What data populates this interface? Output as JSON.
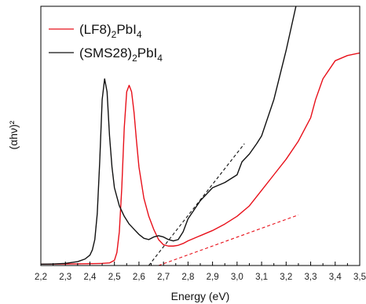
{
  "chart_data": {
    "type": "line",
    "title": "",
    "xlabel": "Energy (eV)",
    "ylabel": "(αhν)²",
    "xlim": [
      2.2,
      3.5
    ],
    "ylim": [
      0,
      1.0
    ],
    "xticks": [
      "2,2",
      "2,3",
      "2,4",
      "2,5",
      "2,6",
      "2,7",
      "2,8",
      "2,9",
      "3,0",
      "3,1",
      "3,2",
      "3,3",
      "3,4",
      "3,5"
    ],
    "xtick_values": [
      2.2,
      2.3,
      2.4,
      2.5,
      2.6,
      2.7,
      2.8,
      2.9,
      3.0,
      3.1,
      3.2,
      3.3,
      3.4,
      3.5
    ],
    "yticks_shown": false,
    "legend_position": "top-left",
    "series": [
      {
        "name": "(LF8)₂PbI₄",
        "legend_main": "(LF8)",
        "legend_sub1": "2",
        "legend_mid": "PbI",
        "legend_sub2": "4",
        "color": "#e8101a",
        "x": [
          2.2,
          2.3,
          2.4,
          2.45,
          2.48,
          2.5,
          2.51,
          2.52,
          2.53,
          2.54,
          2.55,
          2.56,
          2.57,
          2.58,
          2.59,
          2.6,
          2.62,
          2.64,
          2.66,
          2.68,
          2.7,
          2.72,
          2.74,
          2.76,
          2.78,
          2.8,
          2.85,
          2.9,
          2.95,
          3.0,
          3.05,
          3.1,
          3.15,
          3.2,
          3.25,
          3.3,
          3.32,
          3.35,
          3.4,
          3.45,
          3.5
        ],
        "y": [
          0.005,
          0.006,
          0.007,
          0.008,
          0.01,
          0.02,
          0.05,
          0.13,
          0.3,
          0.53,
          0.67,
          0.695,
          0.67,
          0.59,
          0.48,
          0.38,
          0.26,
          0.19,
          0.14,
          0.1,
          0.08,
          0.075,
          0.075,
          0.078,
          0.085,
          0.095,
          0.115,
          0.135,
          0.16,
          0.19,
          0.23,
          0.29,
          0.35,
          0.41,
          0.48,
          0.57,
          0.64,
          0.72,
          0.79,
          0.81,
          0.82
        ]
      },
      {
        "name": "(SMS28)₂PbI₄",
        "legend_main": "(SMS28)",
        "legend_sub1": "2",
        "legend_mid": "PbI",
        "legend_sub2": "4",
        "color": "#111111",
        "x": [
          2.2,
          2.25,
          2.3,
          2.35,
          2.38,
          2.4,
          2.41,
          2.42,
          2.43,
          2.44,
          2.45,
          2.46,
          2.47,
          2.48,
          2.49,
          2.5,
          2.52,
          2.54,
          2.56,
          2.58,
          2.6,
          2.62,
          2.64,
          2.66,
          2.68,
          2.7,
          2.72,
          2.74,
          2.76,
          2.78,
          2.8,
          2.85,
          2.9,
          2.95,
          3.0,
          3.02,
          3.05,
          3.08,
          3.1,
          3.15,
          3.2,
          3.24
        ],
        "y": [
          0.005,
          0.006,
          0.008,
          0.015,
          0.025,
          0.04,
          0.06,
          0.1,
          0.2,
          0.4,
          0.64,
          0.72,
          0.67,
          0.5,
          0.38,
          0.3,
          0.23,
          0.19,
          0.16,
          0.14,
          0.12,
          0.105,
          0.1,
          0.11,
          0.115,
          0.11,
          0.1,
          0.095,
          0.1,
          0.13,
          0.18,
          0.25,
          0.3,
          0.32,
          0.35,
          0.4,
          0.43,
          0.47,
          0.5,
          0.64,
          0.83,
          1.0
        ]
      }
    ],
    "tangent_lines": [
      {
        "color": "#e8101a",
        "style": "dashed",
        "x": [
          2.68,
          3.25
        ],
        "y": [
          0.0,
          0.195
        ]
      },
      {
        "color": "#111111",
        "style": "dashed",
        "x": [
          2.64,
          3.03
        ],
        "y": [
          0.0,
          0.47
        ]
      }
    ]
  }
}
